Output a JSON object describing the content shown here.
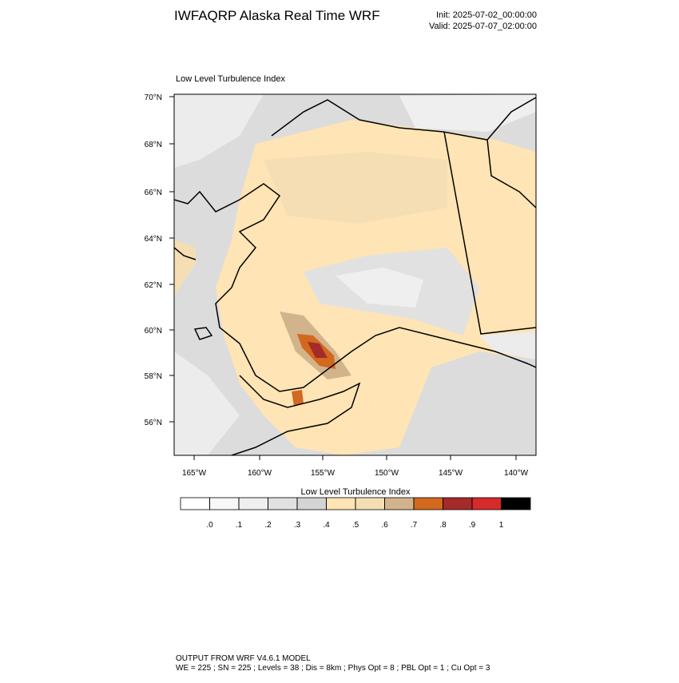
{
  "header": {
    "title": "IWFAQRP Alaska Real Time WRF",
    "init": "Init: 2025-07-02_00:00:00",
    "valid": "Valid: 2025-07-07_02:00:00"
  },
  "map": {
    "title": "Low Level Turbulence Index",
    "lat_labels": [
      "70°N",
      "68°N",
      "66°N",
      "64°N",
      "62°N",
      "60°N",
      "58°N",
      "56°N"
    ],
    "lon_labels": [
      "165°W",
      "160°W",
      "155°W",
      "150°W",
      "145°W",
      "140°W"
    ]
  },
  "colorbar": {
    "title": "Low Level Turbulence Index",
    "colors": [
      "#ffffff",
      "#f7f7f7",
      "#efefef",
      "#e1e1e1",
      "#d4d4d4",
      "#ffe4b5",
      "#f5deb3",
      "#d2b48c",
      "#d2691e",
      "#a52a2a",
      "#d62b2b",
      "#000000"
    ],
    "ticks": [
      {
        "value": 0,
        "label": ".0"
      },
      {
        "value": 0.1,
        "label": ".1"
      },
      {
        "value": 0.2,
        "label": ".2"
      },
      {
        "value": 0.3,
        "label": ".3"
      },
      {
        "value": 0.4,
        "label": ".4"
      },
      {
        "value": 0.5,
        "label": ".5"
      },
      {
        "value": 0.6,
        "label": ".6"
      },
      {
        "value": 0.7,
        "label": ".7"
      },
      {
        "value": 0.8,
        "label": ".8"
      },
      {
        "value": 0.9,
        "label": ".9"
      },
      1
    ]
  },
  "footer": {
    "line1": "OUTPUT FROM WRF V4.6.1 MODEL",
    "line2": "WE = 225 ; SN = 225 ; Levels = 38 ; Dis = 8km ; Phys Opt = 8 ; PBL Opt = 1 ; Cu Opt = 3"
  }
}
